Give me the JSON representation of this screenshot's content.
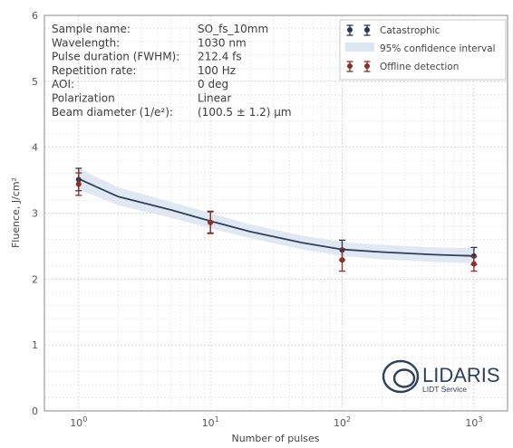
{
  "chart_data": {
    "type": "line",
    "xscale": "log",
    "xlim": [
      0.55,
      1800
    ],
    "ylim": [
      0,
      6
    ],
    "xlabel": "Number of pulses",
    "ylabel": "Fluence, J/cm²",
    "x_ticks": [
      {
        "value": 1,
        "base": "10",
        "exp": "0"
      },
      {
        "value": 10,
        "base": "10",
        "exp": "1"
      },
      {
        "value": 100,
        "base": "10",
        "exp": "2"
      },
      {
        "value": 1000,
        "base": "10",
        "exp": "3"
      }
    ],
    "y_ticks": [
      0,
      1,
      2,
      3,
      4,
      5,
      6
    ],
    "grid": true,
    "legend_position": "top-right",
    "series": [
      {
        "name": "Catastrophic",
        "color": "#2a3650",
        "x": [
          1,
          10,
          100,
          1000
        ],
        "y": [
          3.51,
          2.86,
          2.44,
          2.35
        ],
        "err": [
          0.17,
          0.16,
          0.15,
          0.13
        ]
      },
      {
        "name": "Offline detection",
        "color": "#8c2f24",
        "x": [
          1,
          10,
          100,
          1000
        ],
        "y": [
          3.44,
          2.86,
          2.29,
          2.23
        ],
        "err": [
          0.17,
          0.17,
          0.17,
          0.11
        ]
      }
    ],
    "fit_line": {
      "color": "#2f3f5c",
      "x": [
        1,
        2,
        5,
        10,
        20,
        50,
        100,
        200,
        500,
        1000
      ],
      "y": [
        3.52,
        3.25,
        3.05,
        2.88,
        2.72,
        2.55,
        2.45,
        2.41,
        2.37,
        2.35
      ]
    },
    "confidence_band": {
      "name": "95% confidence interval",
      "color": "#dce6f2",
      "x": [
        1,
        2,
        5,
        10,
        20,
        50,
        100,
        200,
        500,
        1000
      ],
      "lower": [
        3.36,
        3.12,
        2.93,
        2.77,
        2.62,
        2.45,
        2.35,
        2.3,
        2.26,
        2.24
      ],
      "upper": [
        3.68,
        3.39,
        3.17,
        3.0,
        2.83,
        2.66,
        2.56,
        2.52,
        2.48,
        2.47
      ]
    }
  },
  "info_box": {
    "rows": [
      {
        "label": "Sample name:",
        "value": "SO_fs_10mm"
      },
      {
        "label": "Wavelength:",
        "value": "1030 nm"
      },
      {
        "label": "Pulse duration (FWHM):",
        "value": "212.4 fs"
      },
      {
        "label": "Repetition rate:",
        "value": "100 Hz"
      },
      {
        "label": "AOI:",
        "value": "0 deg"
      },
      {
        "label": "Polarization",
        "value": "Linear"
      },
      {
        "label": "Beam diameter (1/e²):",
        "value": "(100.5 ± 1.2) μm"
      }
    ]
  },
  "logo": {
    "name": "LIDARIS",
    "tagline": "LIDT Service",
    "color": "#2f3f5c"
  }
}
